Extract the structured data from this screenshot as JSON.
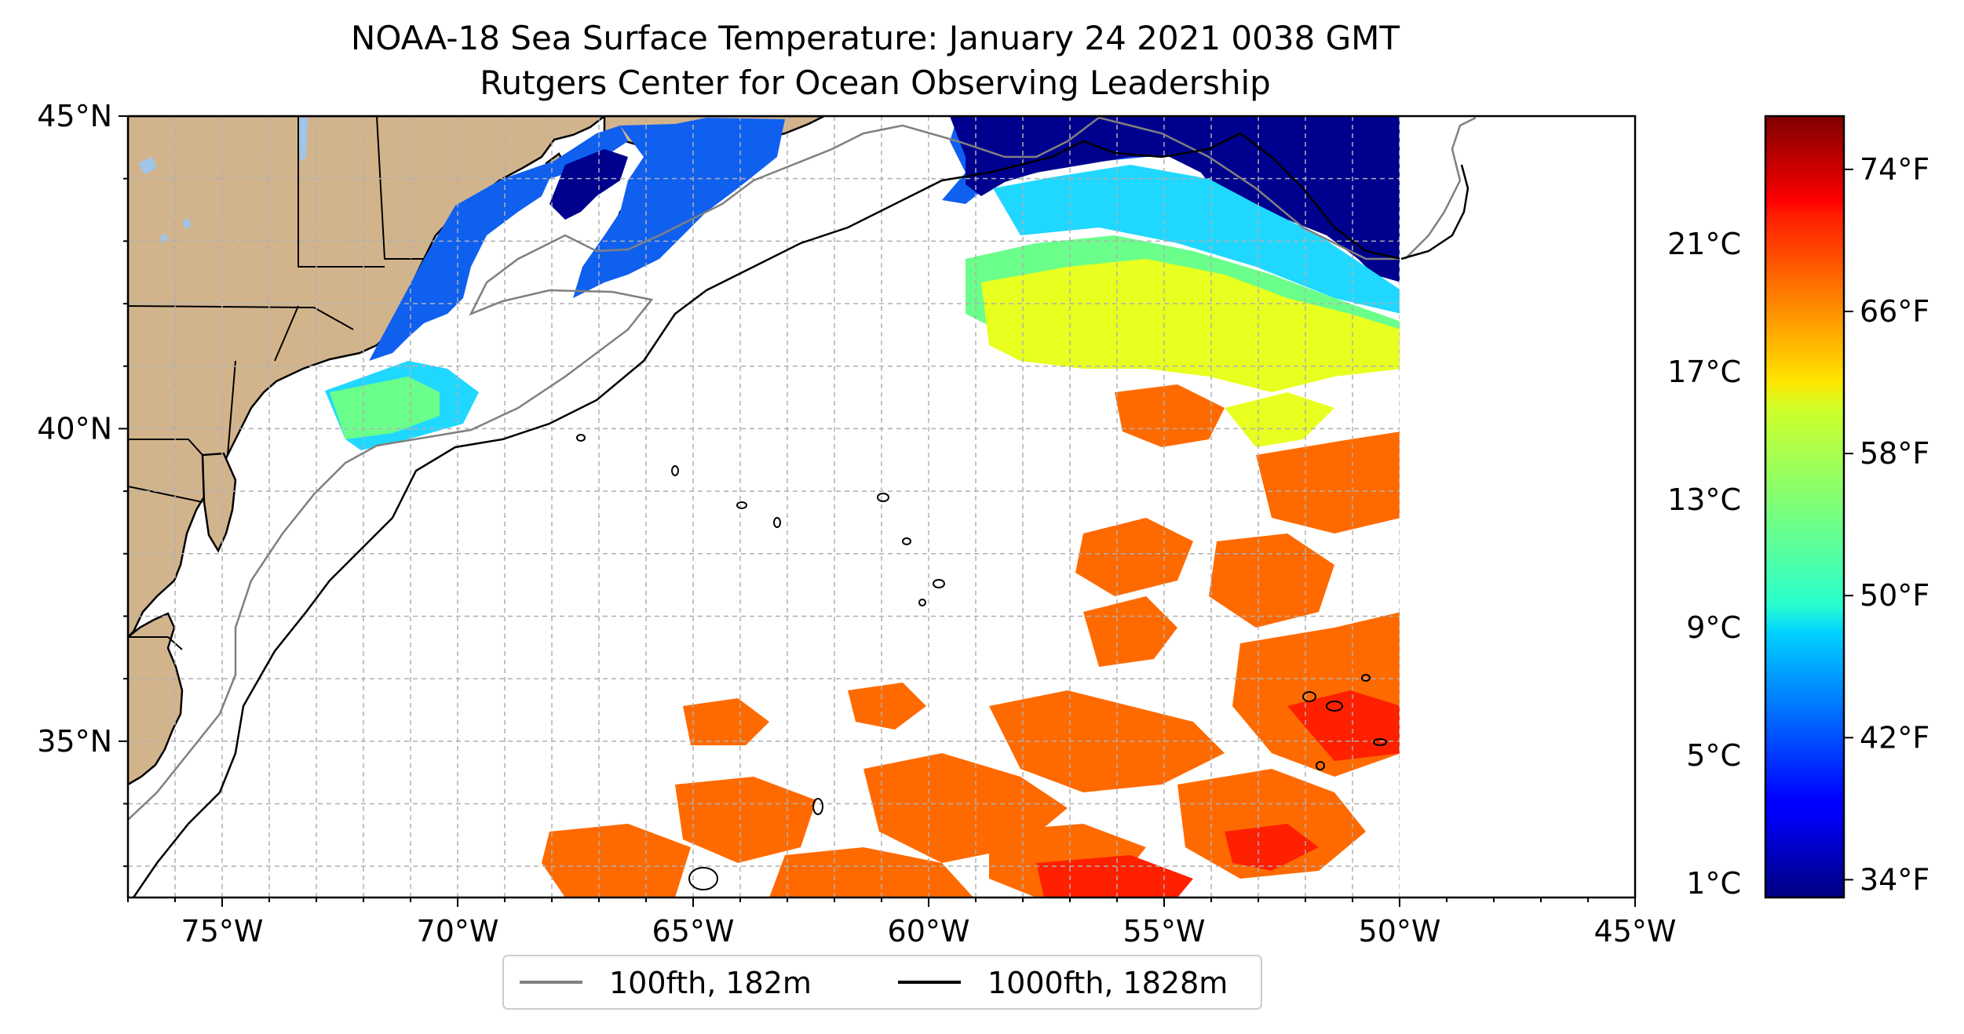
{
  "title": {
    "line1": "NOAA-18 Sea Surface Temperature: January 24 2021 0038 GMT",
    "line2": "Rutgers Center for Ocean Observing Leadership"
  },
  "map": {
    "lon_range": [
      -77,
      -45
    ],
    "lat_range": [
      32.5,
      45
    ],
    "data_lon_max": -50,
    "lon_ticks": [
      {
        "value": -75,
        "label": "75°W"
      },
      {
        "value": -70,
        "label": "70°W"
      },
      {
        "value": -65,
        "label": "65°W"
      },
      {
        "value": -60,
        "label": "60°W"
      },
      {
        "value": -55,
        "label": "55°W"
      },
      {
        "value": -50,
        "label": "50°W"
      },
      {
        "value": -45,
        "label": "45°W"
      }
    ],
    "lat_ticks": [
      {
        "value": 45,
        "label": "45°N"
      },
      {
        "value": 40,
        "label": "40°N"
      },
      {
        "value": 35,
        "label": "35°N"
      }
    ],
    "grid": true,
    "colors": {
      "land": "#d2b48c",
      "lakes": "#9fc5e8",
      "coast": "#000000",
      "isobath_100fth": "#808080",
      "isobath_1000fth": "#000000"
    }
  },
  "legend": {
    "items": [
      {
        "label": "100fth, 182m",
        "color": "#808080"
      },
      {
        "label": "1000fth, 1828m",
        "color": "#000000"
      }
    ]
  },
  "colorbar": {
    "colormap": "jet",
    "range_f": [
      33,
      77
    ],
    "celsius_ticks": [
      {
        "value": 1,
        "label": "1°C"
      },
      {
        "value": 5,
        "label": "5°C"
      },
      {
        "value": 9,
        "label": "9°C"
      },
      {
        "value": 13,
        "label": "13°C"
      },
      {
        "value": 17,
        "label": "17°C"
      },
      {
        "value": 21,
        "label": "21°C"
      }
    ],
    "fahrenheit_ticks": [
      {
        "value": 34,
        "label": "34°F"
      },
      {
        "value": 42,
        "label": "42°F"
      },
      {
        "value": 50,
        "label": "50°F"
      },
      {
        "value": 58,
        "label": "58°F"
      },
      {
        "value": 66,
        "label": "66°F"
      },
      {
        "value": 74,
        "label": "74°F"
      }
    ]
  }
}
